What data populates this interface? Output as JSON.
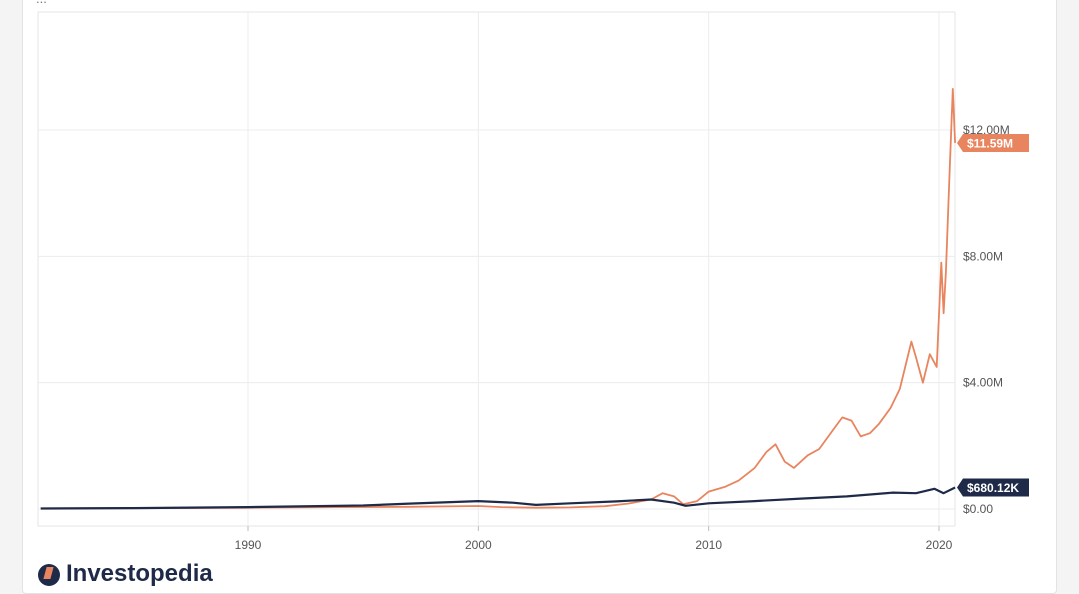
{
  "header": {
    "text": "..."
  },
  "brand": {
    "name": "Investopedia"
  },
  "chart_data": {
    "type": "line",
    "title": "",
    "xlabel": "",
    "ylabel": "",
    "x_ticks": [
      "1990",
      "2000",
      "2010",
      "2020"
    ],
    "x_range": [
      1981,
      2020.8
    ],
    "y_ticks": [
      "$0.00",
      "$4.00M",
      "$8.00M",
      "$12.00M"
    ],
    "ylim": [
      0,
      15500000
    ],
    "grid": true,
    "series": [
      {
        "key": "orange",
        "color": "#e8855f",
        "end_label": "$11.59M",
        "points": [
          [
            1981,
            20000
          ],
          [
            1985,
            25000
          ],
          [
            1990,
            40000
          ],
          [
            1994,
            60000
          ],
          [
            1997,
            70000
          ],
          [
            2000,
            95000
          ],
          [
            2001,
            60000
          ],
          [
            2002.5,
            40000
          ],
          [
            2004,
            50000
          ],
          [
            2005.5,
            90000
          ],
          [
            2006.5,
            170000
          ],
          [
            2007.5,
            300000
          ],
          [
            2008,
            500000
          ],
          [
            2008.5,
            400000
          ],
          [
            2008.9,
            150000
          ],
          [
            2009.5,
            250000
          ],
          [
            2010,
            550000
          ],
          [
            2010.7,
            700000
          ],
          [
            2011.3,
            900000
          ],
          [
            2012,
            1300000
          ],
          [
            2012.5,
            1800000
          ],
          [
            2012.9,
            2050000
          ],
          [
            2013.3,
            1500000
          ],
          [
            2013.7,
            1300000
          ],
          [
            2014.3,
            1700000
          ],
          [
            2014.8,
            1900000
          ],
          [
            2015.4,
            2500000
          ],
          [
            2015.8,
            2900000
          ],
          [
            2016.2,
            2800000
          ],
          [
            2016.6,
            2300000
          ],
          [
            2017,
            2400000
          ],
          [
            2017.4,
            2700000
          ],
          [
            2017.9,
            3200000
          ],
          [
            2018.3,
            3800000
          ],
          [
            2018.8,
            5300000
          ],
          [
            2019,
            4800000
          ],
          [
            2019.3,
            4000000
          ],
          [
            2019.6,
            4900000
          ],
          [
            2019.9,
            4500000
          ],
          [
            2020.1,
            7800000
          ],
          [
            2020.2,
            6200000
          ],
          [
            2020.3,
            7500000
          ],
          [
            2020.45,
            10500000
          ],
          [
            2020.6,
            13300000
          ],
          [
            2020.7,
            11590000
          ]
        ]
      },
      {
        "key": "navy",
        "color": "#1e2a48",
        "end_label": "$680.12K",
        "points": [
          [
            1981,
            15000
          ],
          [
            1985,
            30000
          ],
          [
            1990,
            60000
          ],
          [
            1995,
            110000
          ],
          [
            1997,
            170000
          ],
          [
            2000,
            250000
          ],
          [
            2001.5,
            200000
          ],
          [
            2002.5,
            130000
          ],
          [
            2004,
            180000
          ],
          [
            2006,
            240000
          ],
          [
            2007.5,
            300000
          ],
          [
            2008.5,
            200000
          ],
          [
            2009,
            100000
          ],
          [
            2010,
            180000
          ],
          [
            2012,
            250000
          ],
          [
            2014,
            330000
          ],
          [
            2016,
            400000
          ],
          [
            2018,
            520000
          ],
          [
            2019,
            500000
          ],
          [
            2019.8,
            640000
          ],
          [
            2020.2,
            500000
          ],
          [
            2020.7,
            680120
          ]
        ]
      }
    ]
  }
}
